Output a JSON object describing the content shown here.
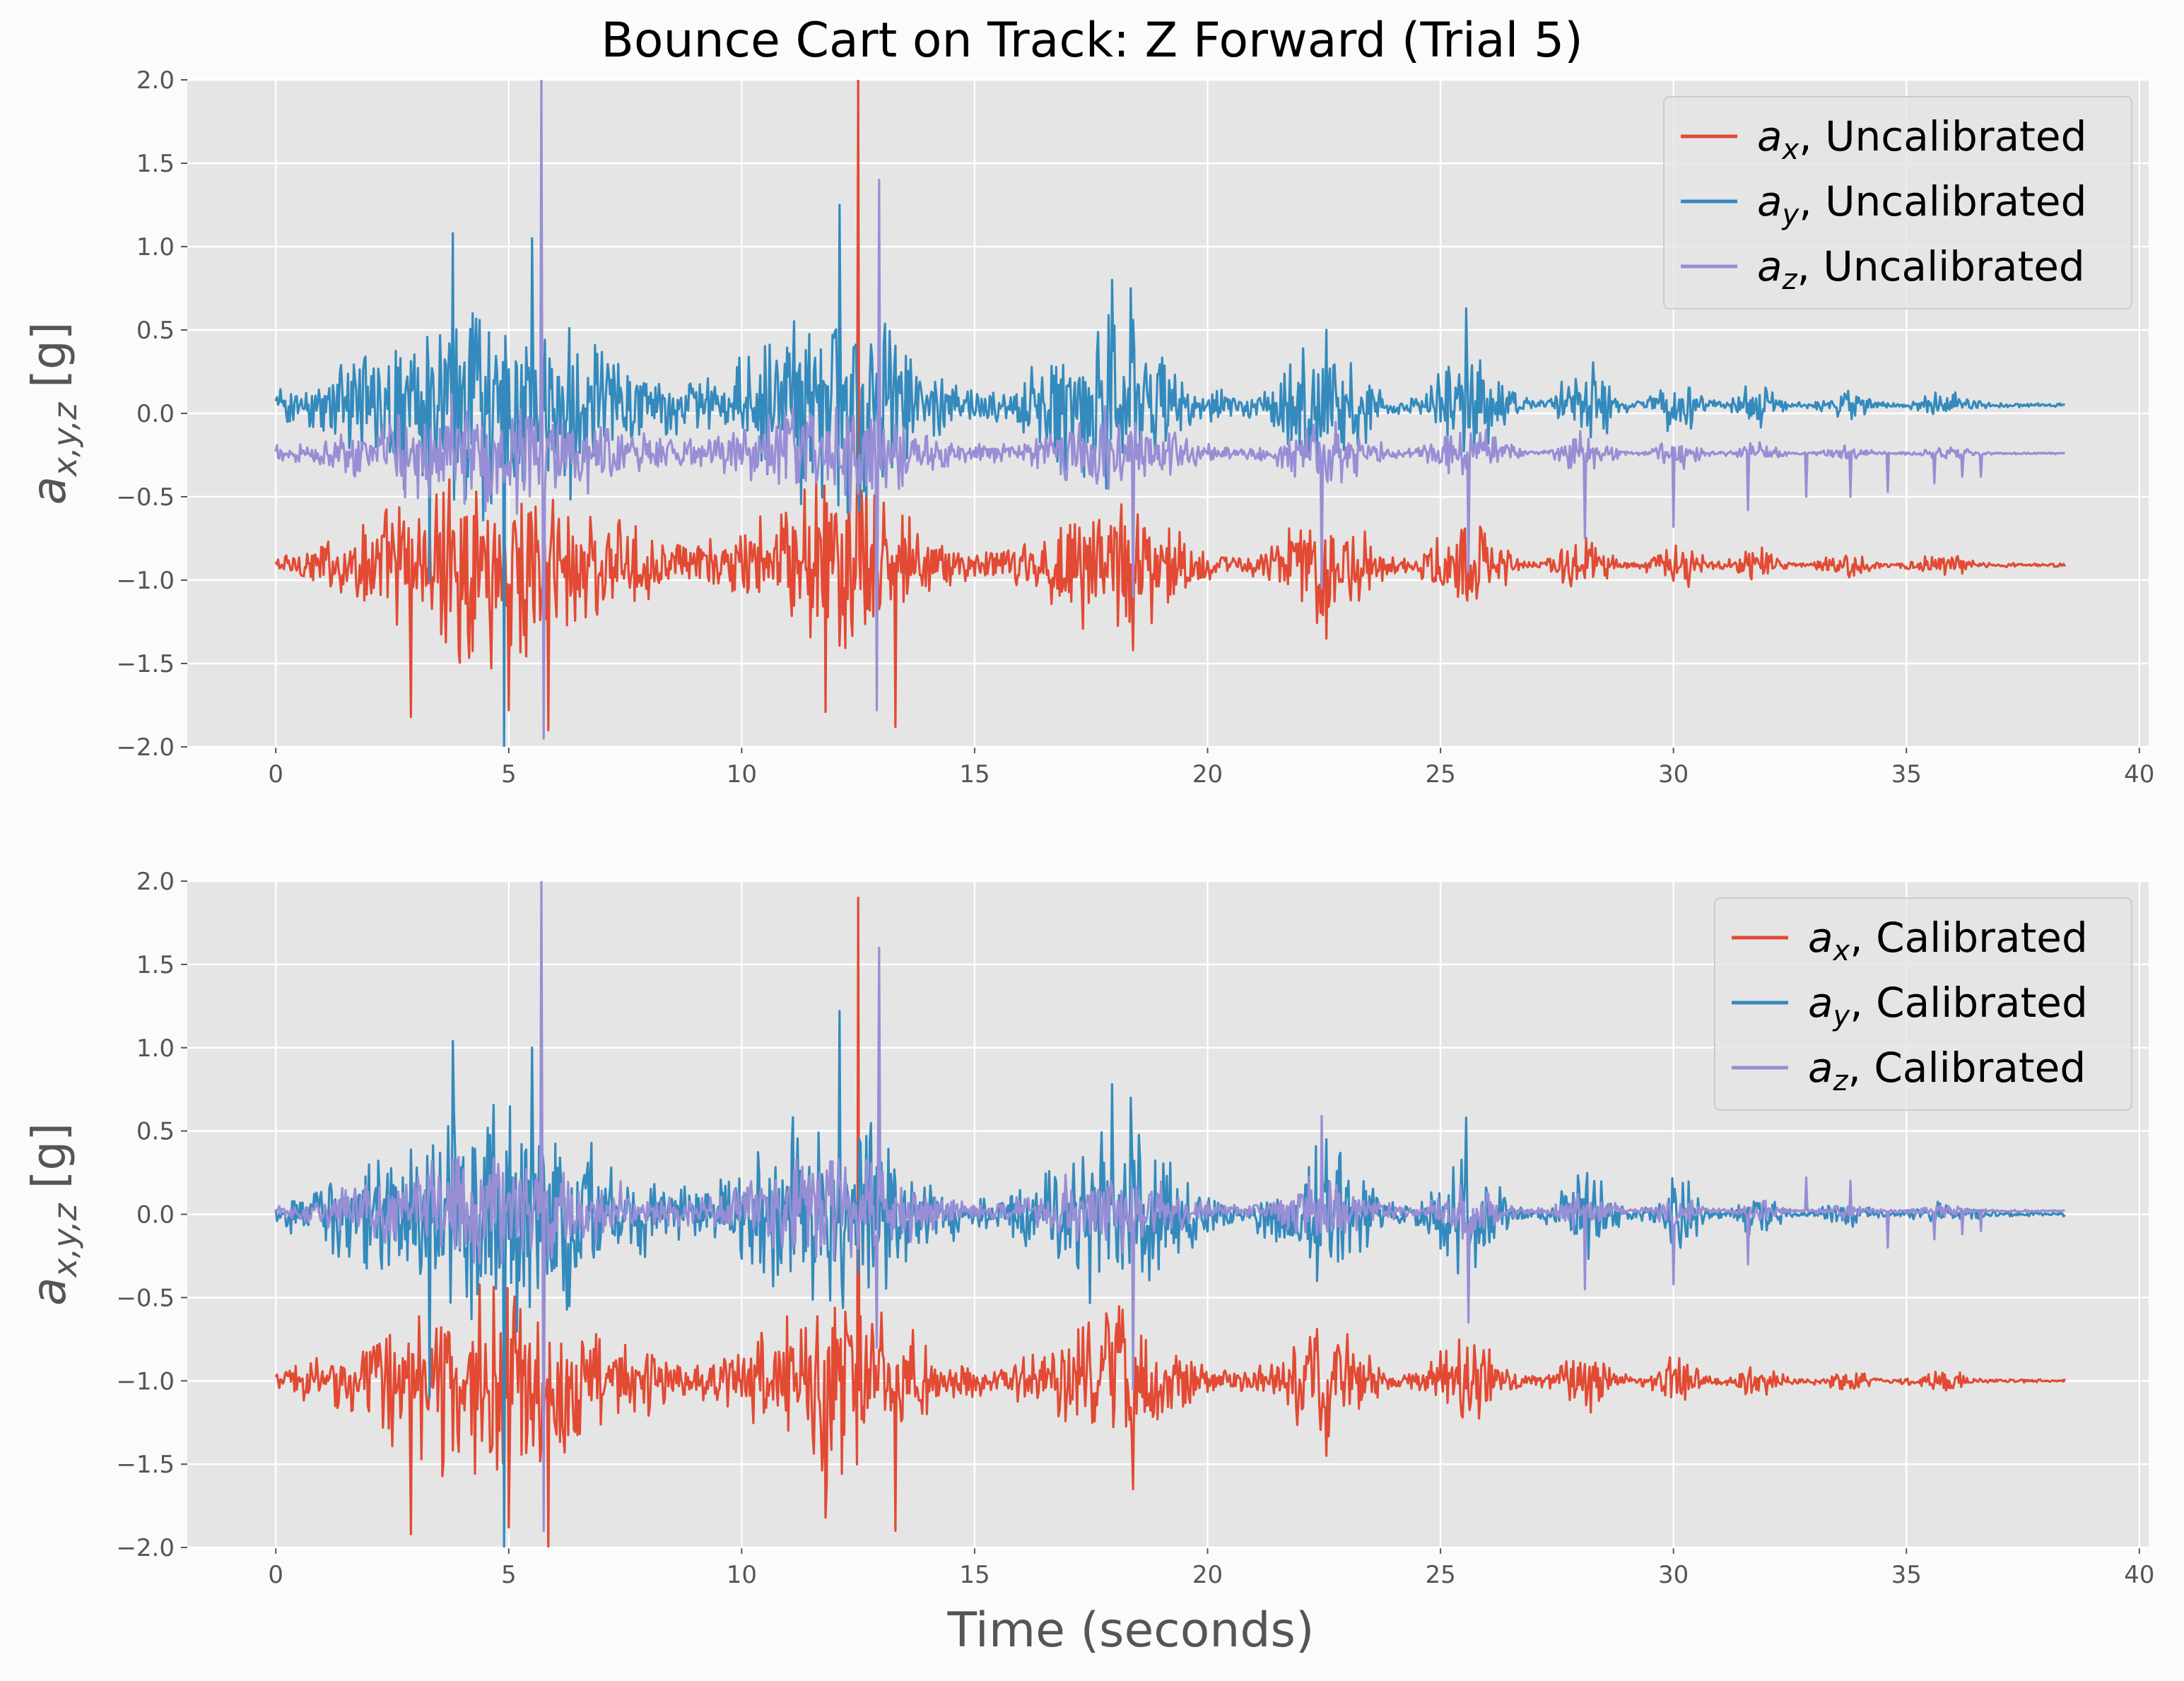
{
  "figure": {
    "title": "Bounce Cart on Track: Z Forward (Trial 5)",
    "xlabel": "Time (seconds)",
    "background": "#fbfbfb",
    "axes_face": "#e5e5e5",
    "grid_color": "#ffffff",
    "tick_text_color": "#555555"
  },
  "chart_data": [
    {
      "type": "line",
      "panel": "top",
      "ylabel": "a_{x,y,z} [g]",
      "xlim": [
        -1.9,
        40.2
      ],
      "ylim": [
        -2.0,
        2.0
      ],
      "xticks": [
        0,
        5,
        10,
        15,
        20,
        25,
        30,
        35,
        40
      ],
      "yticks": [
        -2.0,
        -1.5,
        -1.0,
        -0.5,
        0.0,
        0.5,
        1.0,
        1.5,
        2.0
      ],
      "grid": true,
      "legend_position": "top-right",
      "series": [
        {
          "name": "a_x, Uncalibrated",
          "legend_sym": "a",
          "legend_sub": "x",
          "legend_rest": ", Uncalibrated",
          "color": "#e24a33",
          "baseline": -0.91,
          "peak_scale": 0.5,
          "spikes": [
            [
              2.9,
              -1.82
            ],
            [
              5.0,
              -1.78
            ],
            [
              5.85,
              -1.9
            ],
            [
              11.8,
              -1.79
            ],
            [
              12.5,
              2.0
            ],
            [
              13.3,
              -1.88
            ],
            [
              18.4,
              -1.42
            ],
            [
              22.55,
              -1.35
            ]
          ]
        },
        {
          "name": "a_y, Uncalibrated",
          "legend_sym": "a",
          "legend_sub": "y",
          "legend_rest": ", Uncalibrated",
          "color": "#348abd",
          "baseline": 0.05,
          "peak_scale": 0.6,
          "spikes": [
            [
              3.8,
              1.08
            ],
            [
              4.9,
              -2.0
            ],
            [
              3.3,
              -1.0
            ],
            [
              12.1,
              1.25
            ],
            [
              5.5,
              1.05
            ],
            [
              17.95,
              0.8
            ],
            [
              18.35,
              0.75
            ],
            [
              22.55,
              0.5
            ],
            [
              25.55,
              0.63
            ]
          ]
        },
        {
          "name": "a_z, Uncalibrated",
          "legend_sym": "a",
          "legend_sub": "z",
          "legend_rest": ", Uncalibrated",
          "color": "#988ed5",
          "baseline": -0.24,
          "peak_scale": 0.3,
          "spikes": [
            [
              5.7,
              2.0
            ],
            [
              5.75,
              -1.95
            ],
            [
              12.95,
              1.4
            ],
            [
              12.9,
              -1.78
            ],
            [
              18.4,
              -1.1
            ],
            [
              22.45,
              -1.05
            ],
            [
              25.6,
              -0.95
            ],
            [
              28.1,
              -0.75
            ],
            [
              30.0,
              -0.68
            ],
            [
              31.6,
              -0.58
            ],
            [
              32.85,
              -0.5
            ],
            [
              33.8,
              -0.5
            ],
            [
              34.6,
              -0.47
            ],
            [
              35.6,
              -0.42
            ],
            [
              36.2,
              -0.38
            ],
            [
              36.6,
              -0.38
            ]
          ]
        }
      ]
    },
    {
      "type": "line",
      "panel": "bottom",
      "ylabel": "a_{x,y,z} [g]",
      "xlim": [
        -1.9,
        40.2
      ],
      "ylim": [
        -2.0,
        2.0
      ],
      "xticks": [
        0,
        5,
        10,
        15,
        20,
        25,
        30,
        35,
        40
      ],
      "yticks": [
        -2.0,
        -1.5,
        -1.0,
        -0.5,
        0.0,
        0.5,
        1.0,
        1.5,
        2.0
      ],
      "grid": true,
      "legend_position": "top-right",
      "series": [
        {
          "name": "a_x, Calibrated",
          "legend_sym": "a",
          "legend_sub": "x",
          "legend_rest": ", Calibrated",
          "color": "#e24a33",
          "baseline": -1.0,
          "peak_scale": 0.5,
          "spikes": [
            [
              2.9,
              -1.92
            ],
            [
              5.0,
              -1.88
            ],
            [
              5.85,
              -2.0
            ],
            [
              11.8,
              -1.82
            ],
            [
              12.5,
              1.9
            ],
            [
              13.3,
              -1.9
            ],
            [
              18.4,
              -1.65
            ],
            [
              22.55,
              -1.45
            ]
          ]
        },
        {
          "name": "a_y, Calibrated",
          "legend_sym": "a",
          "legend_sub": "y",
          "legend_rest": ", Calibrated",
          "color": "#348abd",
          "baseline": 0.0,
          "peak_scale": 0.6,
          "spikes": [
            [
              3.8,
              1.04
            ],
            [
              4.9,
              -2.0
            ],
            [
              3.3,
              -1.1
            ],
            [
              12.1,
              1.22
            ],
            [
              5.5,
              1.0
            ],
            [
              17.95,
              0.78
            ],
            [
              18.35,
              0.7
            ],
            [
              22.55,
              0.45
            ],
            [
              25.55,
              0.58
            ]
          ]
        },
        {
          "name": "a_z, Calibrated",
          "legend_sym": "a",
          "legend_sub": "z",
          "legend_rest": ", Calibrated",
          "color": "#988ed5",
          "baseline": 0.02,
          "peak_scale": 0.3,
          "spikes": [
            [
              5.7,
              2.0
            ],
            [
              5.75,
              -1.9
            ],
            [
              12.95,
              1.6
            ],
            [
              12.9,
              -0.8
            ],
            [
              18.4,
              -1.05
            ],
            [
              22.45,
              0.59
            ],
            [
              25.6,
              -0.65
            ],
            [
              28.1,
              -0.45
            ],
            [
              30.0,
              -0.42
            ],
            [
              31.6,
              -0.3
            ],
            [
              32.85,
              0.22
            ],
            [
              33.8,
              0.2
            ],
            [
              34.6,
              -0.2
            ],
            [
              35.6,
              -0.15
            ],
            [
              36.2,
              -0.12
            ],
            [
              36.6,
              -0.1
            ]
          ]
        }
      ]
    }
  ]
}
